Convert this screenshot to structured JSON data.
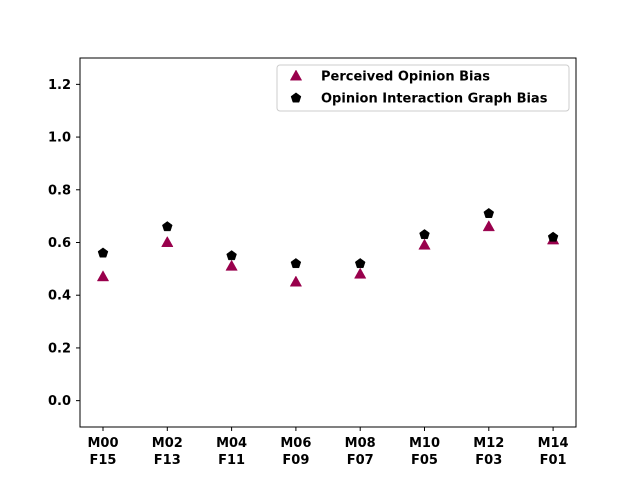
{
  "chart_data": {
    "type": "scatter",
    "title": "",
    "xlabel": "",
    "ylabel": "",
    "categories": [
      [
        "M00",
        "F15"
      ],
      [
        "M02",
        "F13"
      ],
      [
        "M04",
        "F11"
      ],
      [
        "M06",
        "F09"
      ],
      [
        "M08",
        "F07"
      ],
      [
        "M10",
        "F05"
      ],
      [
        "M12",
        "F03"
      ],
      [
        "M14",
        "F01"
      ]
    ],
    "ylim": [
      -0.1,
      1.3
    ],
    "yticks": [
      0.0,
      0.2,
      0.4,
      0.6,
      0.8,
      1.0,
      1.2
    ],
    "ytick_labels": [
      "0.0",
      "0.2",
      "0.4",
      "0.6",
      "0.8",
      "1.0",
      "1.2"
    ],
    "grid": false,
    "legend_position": "top-right",
    "series": [
      {
        "name": "Perceived Opinion Bias",
        "marker": "triangle",
        "color": "#99004c",
        "values": [
          0.47,
          0.6,
          0.51,
          0.45,
          0.48,
          0.59,
          0.66,
          0.61
        ]
      },
      {
        "name": "Opinion Interaction Graph Bias",
        "marker": "pentagon",
        "color": "#000000",
        "values": [
          0.56,
          0.66,
          0.55,
          0.52,
          0.52,
          0.63,
          0.71,
          0.62
        ]
      }
    ]
  }
}
